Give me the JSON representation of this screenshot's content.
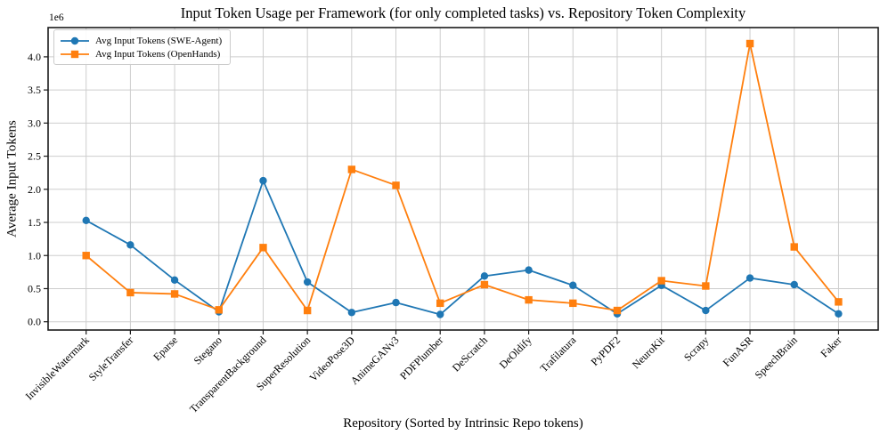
{
  "chart_data": {
    "type": "line",
    "title": "Input Token Usage per Framework (for only completed tasks) vs. Repository Token Complexity",
    "xlabel": "Repository (Sorted by Intrinsic Repo tokens)",
    "ylabel": "Average Input Tokens",
    "y_offset_label": "1e6",
    "values_unit": "millions of tokens (x 1e6)",
    "categories": [
      "InvisibleWatermark",
      "StyleTransfer",
      "Eparse",
      "Stegano",
      "TransparentBackground",
      "SuperResolution",
      "VideoPose3D",
      "AnimeGANv3",
      "PDFPlumber",
      "DeScratch",
      "DeOldify",
      "Trafilatura",
      "PyPDF2",
      "NeuroKit",
      "Scrapy",
      "FunASR",
      "SpeechBrain",
      "Faker"
    ],
    "series": [
      {
        "name": "Avg Input Tokens (SWE-Agent)",
        "color": "#1f77b4",
        "marker": "circle",
        "values": [
          1.53,
          1.16,
          0.63,
          0.15,
          2.13,
          0.6,
          0.14,
          0.29,
          0.11,
          0.69,
          0.78,
          0.55,
          0.12,
          0.55,
          0.17,
          0.66,
          0.56,
          0.12
        ]
      },
      {
        "name": "Avg Input Tokens (OpenHands)",
        "color": "#ff7f0e",
        "marker": "square",
        "values": [
          1.0,
          0.44,
          0.42,
          0.18,
          1.12,
          0.17,
          2.3,
          2.06,
          0.28,
          0.56,
          0.33,
          0.28,
          0.17,
          0.62,
          0.54,
          4.2,
          1.13,
          0.3
        ]
      }
    ],
    "yticks": [
      0.0,
      0.5,
      1.0,
      1.5,
      2.0,
      2.5,
      3.0,
      3.5,
      4.0
    ],
    "ylim": [
      -0.13,
      4.44
    ],
    "grid": true,
    "grid_color": "#cdcdcd",
    "spine_color": "#1a1a1a",
    "legend_position": "upper left",
    "background": "#ffffff"
  }
}
